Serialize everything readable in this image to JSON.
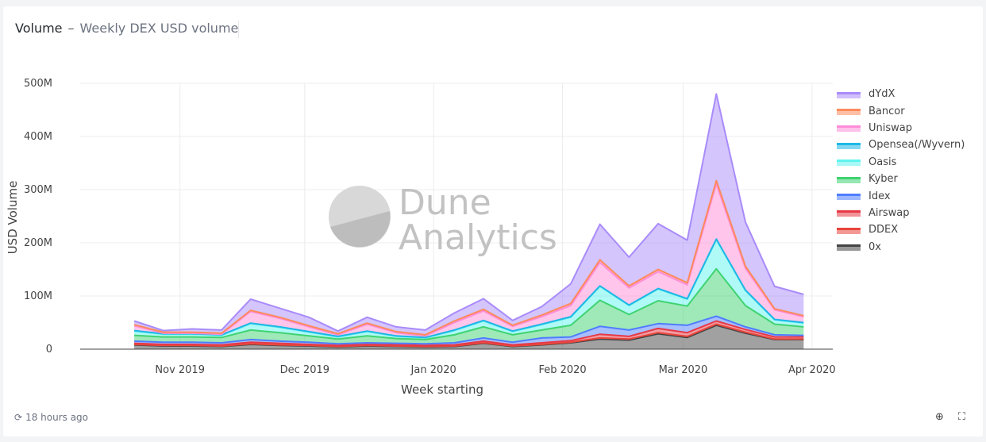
{
  "header": {
    "title": "Volume",
    "separator": "–",
    "subtitle": "Weekly DEX USD volume"
  },
  "watermark": {
    "line1": "Dune",
    "line2": "Analytics"
  },
  "footer": {
    "refresh_icon": "refresh-icon",
    "updated": "18 hours ago",
    "zoom_icon": "zoom-icon",
    "fullscreen_icon": "fullscreen-icon"
  },
  "chart_data": {
    "type": "area",
    "stacked": true,
    "title": "",
    "xlabel": "Week starting",
    "ylabel": "USD Volume",
    "ylim": [
      0,
      500
    ],
    "y_unit": "M",
    "yticks": [
      "0",
      "100M",
      "200M",
      "300M",
      "400M",
      "500M"
    ],
    "xticks": [
      "Nov 2019",
      "Dec 2019",
      "Jan 2020",
      "Feb 2020",
      "Mar 2020",
      "Apr 2020"
    ],
    "x": [
      "2019-10-21",
      "2019-10-28",
      "2019-11-04",
      "2019-11-11",
      "2019-11-18",
      "2019-11-25",
      "2019-12-02",
      "2019-12-09",
      "2019-12-16",
      "2019-12-23",
      "2019-12-30",
      "2020-01-06",
      "2020-01-13",
      "2020-01-20",
      "2020-01-27",
      "2020-02-03",
      "2020-02-10",
      "2020-02-17",
      "2020-02-24",
      "2020-03-02",
      "2020-03-09",
      "2020-03-16",
      "2020-03-23",
      "2020-03-30"
    ],
    "legend_position": "right",
    "series": [
      {
        "name": "0x",
        "color": "#444444",
        "values": [
          8,
          6,
          6,
          5,
          9,
          7,
          6,
          4,
          6,
          5,
          4,
          5,
          11,
          5,
          8,
          12,
          19,
          17,
          29,
          22,
          45,
          30,
          18,
          18
        ]
      },
      {
        "name": "DDEX",
        "color": "#e8453c",
        "values": [
          1,
          1,
          1,
          1,
          1,
          1,
          1,
          1,
          1,
          1,
          1,
          1,
          1,
          1,
          1,
          1,
          2,
          2,
          2,
          2,
          2,
          2,
          1,
          1
        ]
      },
      {
        "name": "Airswap",
        "color": "#e63946",
        "values": [
          2,
          2,
          2,
          2,
          3,
          3,
          2,
          2,
          2,
          2,
          2,
          2,
          3,
          2,
          3,
          3,
          7,
          5,
          8,
          7,
          6,
          5,
          4,
          4
        ]
      },
      {
        "name": "Idex",
        "color": "#4f7dff",
        "values": [
          4,
          4,
          4,
          4,
          5,
          4,
          4,
          3,
          3,
          3,
          3,
          4,
          6,
          5,
          9,
          7,
          15,
          12,
          9,
          14,
          9,
          5,
          4,
          3
        ]
      },
      {
        "name": "Kyber",
        "color": "#3fd372",
        "values": [
          11,
          10,
          10,
          10,
          18,
          16,
          12,
          9,
          13,
          9,
          8,
          15,
          21,
          14,
          15,
          22,
          49,
          29,
          43,
          36,
          89,
          40,
          20,
          16
        ]
      },
      {
        "name": "Oasis",
        "color": "#5ff3ee",
        "values": [
          8,
          5,
          5,
          4,
          12,
          10,
          7,
          4,
          8,
          4,
          3,
          8,
          11,
          6,
          10,
          15,
          26,
          17,
          22,
          13,
          55,
          28,
          8,
          7
        ]
      },
      {
        "name": "Opensea(/Wyvern)",
        "color": "#1db7e6",
        "values": [
          1,
          1,
          1,
          1,
          1,
          1,
          1,
          1,
          1,
          1,
          1,
          1,
          1,
          1,
          1,
          1,
          1,
          1,
          1,
          1,
          1,
          1,
          1,
          1
        ]
      },
      {
        "name": "Uniswap",
        "color": "#ff8cd8",
        "values": [
          9,
          1,
          1,
          1,
          22,
          16,
          9,
          3,
          13,
          6,
          3,
          14,
          18,
          9,
          14,
          21,
          44,
          32,
          32,
          26,
          104,
          41,
          18,
          11
        ]
      },
      {
        "name": "Bancor",
        "color": "#ff8a5c",
        "values": [
          2,
          2,
          2,
          2,
          2,
          2,
          2,
          2,
          2,
          2,
          2,
          3,
          3,
          2,
          3,
          4,
          5,
          4,
          4,
          4,
          6,
          4,
          2,
          2
        ]
      },
      {
        "name": "dYdX",
        "color": "#a98bfa",
        "values": [
          7,
          3,
          6,
          6,
          21,
          17,
          16,
          5,
          11,
          9,
          9,
          15,
          20,
          9,
          16,
          37,
          67,
          54,
          86,
          80,
          163,
          83,
          42,
          40
        ]
      }
    ]
  }
}
